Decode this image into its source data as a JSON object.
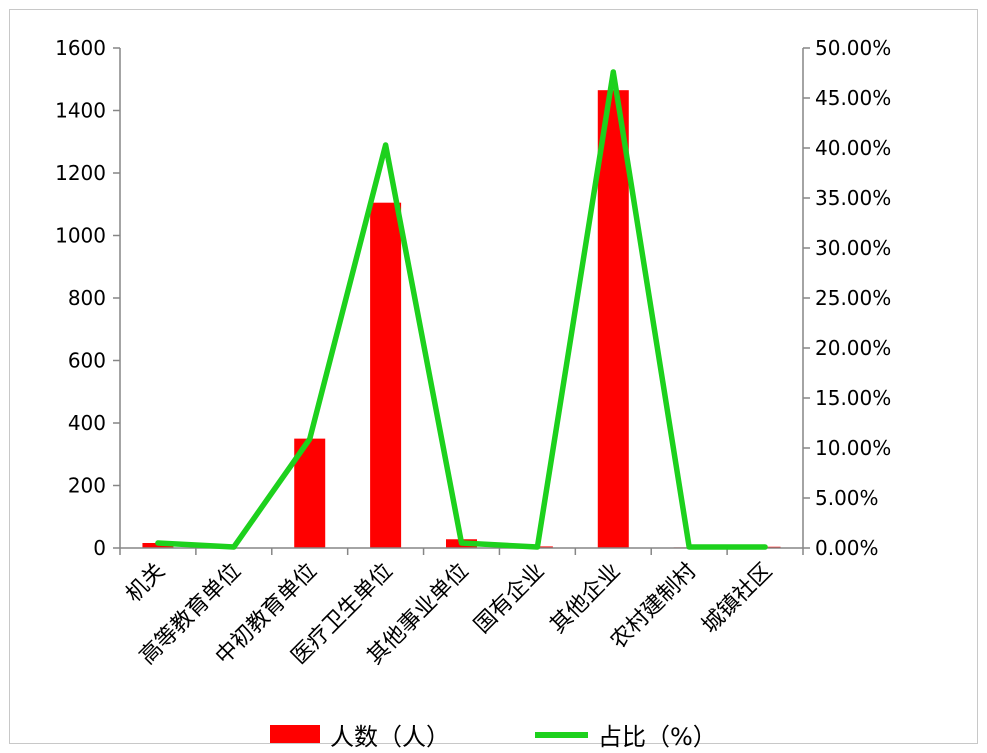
{
  "chart_data": {
    "type": "bar",
    "categories": [
      "机关",
      "高等教育单位",
      "中初教育单位",
      "医疗卫生单位",
      "其他事业单位",
      "国有企业",
      "其他企业",
      "农村建制村",
      "城镇社区"
    ],
    "series": [
      {
        "name": "人数（人）",
        "kind": "bar",
        "axis": "left",
        "color": "#ff0000",
        "values": [
          16,
          0,
          350,
          1105,
          28,
          5,
          1465,
          2,
          4
        ]
      },
      {
        "name": "占比（%）",
        "kind": "line",
        "axis": "right",
        "color": "#1dd11d",
        "values": [
          0.5,
          0.1,
          10.9,
          40.3,
          0.5,
          0.1,
          47.6,
          0.1,
          0.1
        ]
      }
    ],
    "y_left": {
      "min": 0,
      "max": 1600,
      "ticks": [
        "0",
        "200",
        "400",
        "600",
        "800",
        "1000",
        "1200",
        "1400",
        "1600"
      ]
    },
    "y_right": {
      "min": 0,
      "max": 50,
      "ticks": [
        "0.00%",
        "5.00%",
        "10.00%",
        "15.00%",
        "20.00%",
        "25.00%",
        "30.00%",
        "35.00%",
        "40.00%",
        "45.00%",
        "50.00%"
      ]
    },
    "grid": false,
    "legend": "bottom"
  }
}
